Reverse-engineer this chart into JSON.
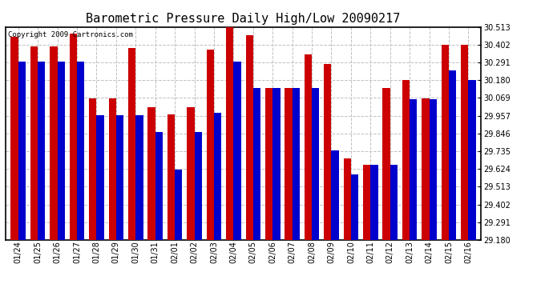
{
  "title": "Barometric Pressure Daily High/Low 20090217",
  "copyright": "Copyright 2009 Cartronics.com",
  "dates": [
    "01/24",
    "01/25",
    "01/26",
    "01/27",
    "01/28",
    "01/29",
    "01/30",
    "01/31",
    "02/01",
    "02/02",
    "02/03",
    "02/04",
    "02/05",
    "02/06",
    "02/07",
    "02/08",
    "02/09",
    "02/10",
    "02/11",
    "02/12",
    "02/13",
    "02/14",
    "02/15",
    "02/16"
  ],
  "highs": [
    30.45,
    30.39,
    30.39,
    30.47,
    30.065,
    30.065,
    30.38,
    30.01,
    29.965,
    30.01,
    30.37,
    30.51,
    30.46,
    30.13,
    30.13,
    30.34,
    30.28,
    29.69,
    29.65,
    30.13,
    30.18,
    30.065,
    30.4,
    30.4
  ],
  "lows": [
    30.295,
    30.295,
    30.295,
    30.295,
    29.96,
    29.96,
    29.96,
    29.855,
    29.62,
    29.855,
    29.975,
    30.295,
    30.13,
    30.13,
    30.13,
    30.13,
    29.74,
    29.59,
    29.65,
    29.65,
    30.06,
    30.06,
    30.24,
    30.18
  ],
  "ylim_min": 29.18,
  "ylim_max": 30.513,
  "yticks": [
    29.18,
    29.291,
    29.402,
    29.513,
    29.624,
    29.735,
    29.846,
    29.957,
    30.069,
    30.18,
    30.291,
    30.402,
    30.513
  ],
  "high_color": "#cc0000",
  "low_color": "#0000cc",
  "bg_color": "#ffffff",
  "grid_color": "#c0c0c0",
  "bar_width": 0.38,
  "title_fontsize": 11,
  "tick_fontsize": 7,
  "copyright_fontsize": 6.5
}
